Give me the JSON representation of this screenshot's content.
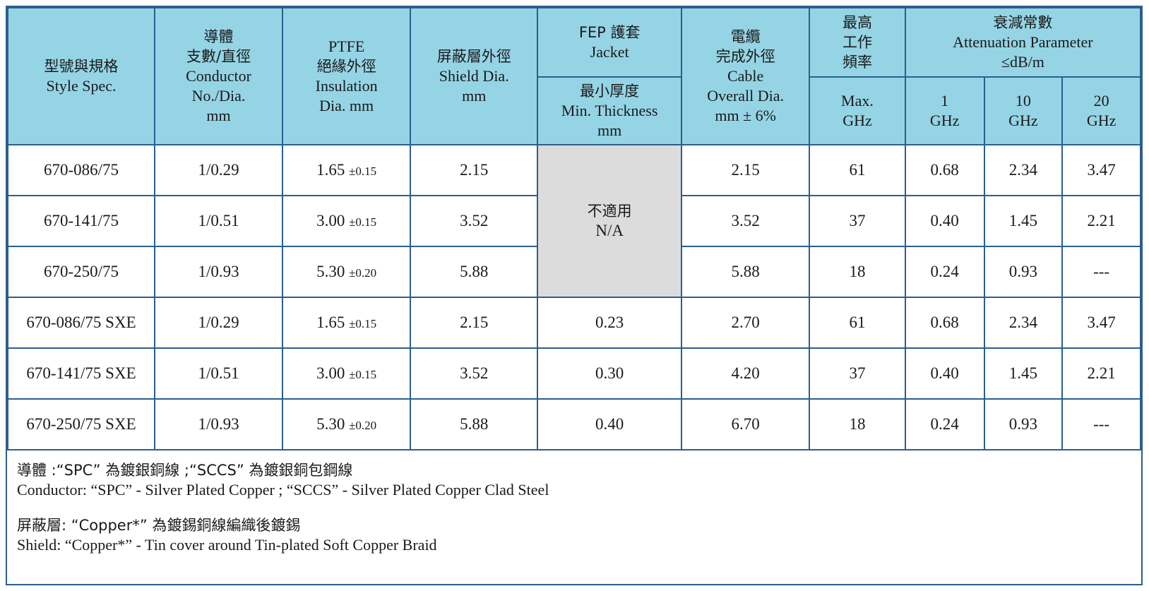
{
  "headers": {
    "style": {
      "zh": "型號與規格",
      "en": "Style Spec."
    },
    "conductor": {
      "zh1": "導體",
      "zh2": "支數/直徑",
      "en1": "Conductor",
      "en2": "No./Dia.",
      "en3": "mm"
    },
    "insulation": {
      "en1": "PTFE",
      "zh": "絕緣外徑",
      "en2": "Insulation",
      "en3": "Dia. mm"
    },
    "shield": {
      "zh": "屏蔽層外徑",
      "en1": "Shield Dia.",
      "en2": "mm"
    },
    "jacket": {
      "line1": "FEP 護套",
      "line2": "Jacket"
    },
    "jacket_sub": {
      "zh": "最小厚度",
      "en1": "Min. Thickness",
      "en2": "mm"
    },
    "cable": {
      "zh1": "電纜",
      "zh2": "完成外徑",
      "en1": "Cable",
      "en2": "Overall Dia.",
      "en3": "mm ± 6%"
    },
    "max_freq": {
      "zh1": "最高",
      "zh2": "工作",
      "zh3": "頻率"
    },
    "max_freq_sub": {
      "en1": "Max.",
      "en2": "GHz"
    },
    "attenuation": {
      "zh": "衰減常數",
      "en1": "Attenuation Parameter",
      "en2": "≤dB/m"
    },
    "freqs": [
      {
        "n": "1",
        "u": "GHz"
      },
      {
        "n": "10",
        "u": "GHz"
      },
      {
        "n": "20",
        "u": "GHz"
      }
    ]
  },
  "na_cell": {
    "zh": "不適用",
    "en": "N/A"
  },
  "rows": [
    {
      "style": "670-086/75",
      "conductor": "1/0.29",
      "ins": "1.65",
      "ins_tol": "±0.15",
      "shield": "2.15",
      "jacket": "",
      "cable": "2.15",
      "maxf": "61",
      "a1": "0.68",
      "a10": "2.34",
      "a20": "3.47"
    },
    {
      "style": "670-141/75",
      "conductor": "1/0.51",
      "ins": "3.00",
      "ins_tol": "±0.15",
      "shield": "3.52",
      "jacket": "",
      "cable": "3.52",
      "maxf": "37",
      "a1": "0.40",
      "a10": "1.45",
      "a20": "2.21"
    },
    {
      "style": "670-250/75",
      "conductor": "1/0.93",
      "ins": "5.30",
      "ins_tol": "±0.20",
      "shield": "5.88",
      "jacket": "",
      "cable": "5.88",
      "maxf": "18",
      "a1": "0.24",
      "a10": "0.93",
      "a20": "---"
    },
    {
      "style": "670-086/75 SXE",
      "conductor": "1/0.29",
      "ins": "1.65",
      "ins_tol": "±0.15",
      "shield": "2.15",
      "jacket": "0.23",
      "cable": "2.70",
      "maxf": "61",
      "a1": "0.68",
      "a10": "2.34",
      "a20": "3.47"
    },
    {
      "style": "670-141/75 SXE",
      "conductor": "1/0.51",
      "ins": "3.00",
      "ins_tol": "±0.15",
      "shield": "3.52",
      "jacket": "0.30",
      "cable": "4.20",
      "maxf": "37",
      "a1": "0.40",
      "a10": "1.45",
      "a20": "2.21"
    },
    {
      "style": "670-250/75 SXE",
      "conductor": "1/0.93",
      "ins": "5.30",
      "ins_tol": "±0.20",
      "shield": "5.88",
      "jacket": "0.40",
      "cable": "6.70",
      "maxf": "18",
      "a1": "0.24",
      "a10": "0.93",
      "a20": "---"
    }
  ],
  "notes": {
    "conductor_zh": "導體 :“SPC” 為鍍銀銅線 ;“SCCS” 為鍍銀銅包鋼線",
    "conductor_en": "Conductor: “SPC” - Silver Plated Copper ;   “SCCS” - Silver Plated Copper Clad Steel",
    "shield_zh": "屏蔽層: “Copper*” 為鍍錫銅線編織後鍍錫",
    "shield_en": "Shield: “Copper*” - Tin cover around Tin-plated Soft Copper Braid"
  },
  "colors": {
    "header_bg": "#95d4e5",
    "border": "#2b5f8e",
    "na_bg": "#dcdcdc"
  }
}
